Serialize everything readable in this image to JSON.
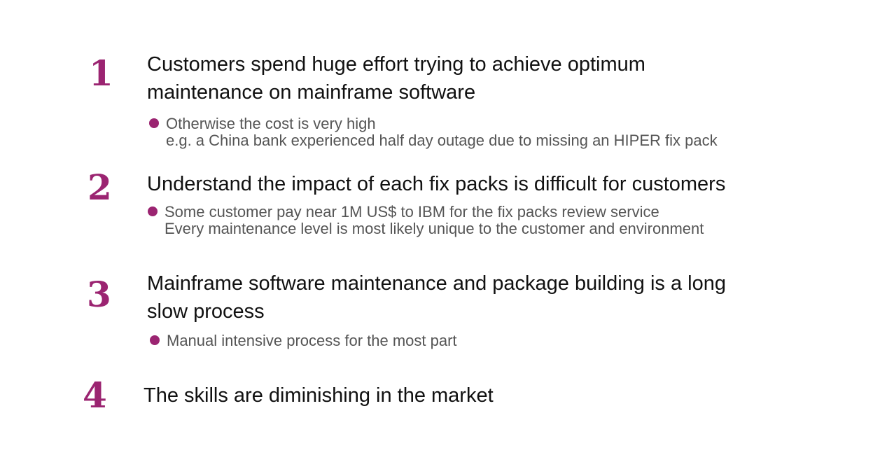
{
  "accent_color": "#9b2471",
  "items": [
    {
      "number": "1",
      "heading_lines": [
        "Customers spend huge effort trying to achieve optimum",
        "maintenance on mainframe software"
      ],
      "bullet_lines": [
        "Otherwise the cost is very high",
        "e.g. a China bank experienced half day outage due to missing an HIPER fix pack"
      ]
    },
    {
      "number": "2",
      "heading_lines": [
        "Understand the impact of each fix packs is difficult for customers"
      ],
      "bullet_lines": [
        "Some customer pay near 1M US$ to IBM for the fix packs review service",
        "Every maintenance level is most likely unique to the customer and environment"
      ]
    },
    {
      "number": "3",
      "heading_lines": [
        "Mainframe software maintenance and package building is a long",
        "slow process"
      ],
      "bullet_lines": [
        "Manual intensive process for the most part"
      ]
    },
    {
      "number": "4",
      "heading_lines": [
        "The skills are diminishing in the market"
      ],
      "bullet_lines": []
    }
  ]
}
